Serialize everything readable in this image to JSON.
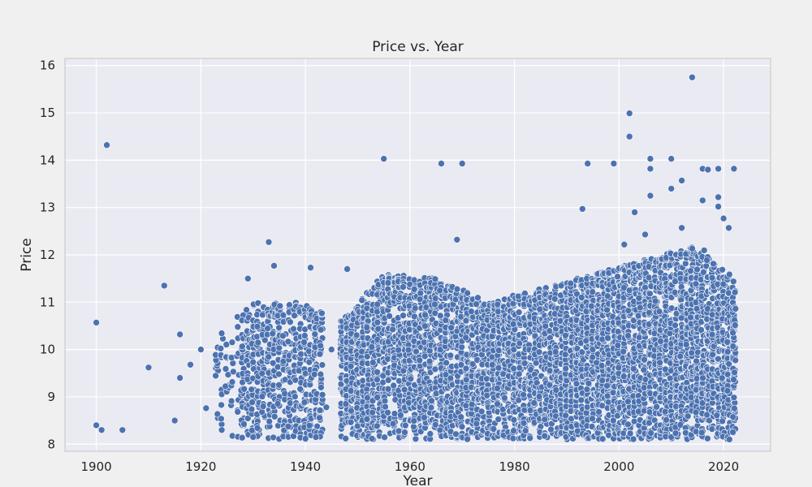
{
  "chart_data": {
    "type": "scatter",
    "title": "Price vs. Year",
    "xlabel": "Year",
    "ylabel": "Price",
    "xlim": [
      1894,
      2029
    ],
    "ylim": [
      7.85,
      16.15
    ],
    "xticks": [
      1900,
      1920,
      1940,
      1960,
      1980,
      2000,
      2020
    ],
    "yticks": [
      8,
      9,
      10,
      11,
      12,
      13,
      14,
      15,
      16
    ],
    "grid": true,
    "point_color": "#4c72b0",
    "point_edge_color": "#ffffff",
    "background_color": "#eaeaf2",
    "outliers": [
      {
        "x": 1900,
        "y": 10.57
      },
      {
        "x": 1900,
        "y": 8.4
      },
      {
        "x": 1901,
        "y": 8.3
      },
      {
        "x": 1902,
        "y": 14.32
      },
      {
        "x": 1905,
        "y": 8.3
      },
      {
        "x": 1910,
        "y": 9.62
      },
      {
        "x": 1913,
        "y": 11.35
      },
      {
        "x": 1915,
        "y": 8.5
      },
      {
        "x": 1916,
        "y": 9.4
      },
      {
        "x": 1916,
        "y": 10.32
      },
      {
        "x": 1918,
        "y": 9.68
      },
      {
        "x": 1920,
        "y": 10.0
      },
      {
        "x": 1921,
        "y": 8.76
      },
      {
        "x": 1929,
        "y": 11.5
      },
      {
        "x": 1933,
        "y": 12.27
      },
      {
        "x": 1934,
        "y": 11.77
      },
      {
        "x": 1941,
        "y": 11.73
      },
      {
        "x": 1945,
        "y": 10.0
      },
      {
        "x": 1948,
        "y": 11.7
      },
      {
        "x": 1955,
        "y": 14.03
      },
      {
        "x": 1966,
        "y": 13.93
      },
      {
        "x": 1970,
        "y": 13.93
      },
      {
        "x": 1969,
        "y": 12.32
      },
      {
        "x": 1993,
        "y": 12.97
      },
      {
        "x": 1994,
        "y": 13.93
      },
      {
        "x": 1999,
        "y": 13.93
      },
      {
        "x": 2001,
        "y": 12.22
      },
      {
        "x": 2002,
        "y": 14.99
      },
      {
        "x": 2002,
        "y": 14.5
      },
      {
        "x": 2003,
        "y": 12.9
      },
      {
        "x": 2005,
        "y": 12.43
      },
      {
        "x": 2006,
        "y": 14.03
      },
      {
        "x": 2006,
        "y": 13.82
      },
      {
        "x": 2006,
        "y": 13.25
      },
      {
        "x": 2010,
        "y": 14.03
      },
      {
        "x": 2010,
        "y": 13.4
      },
      {
        "x": 2012,
        "y": 13.57
      },
      {
        "x": 2012,
        "y": 12.57
      },
      {
        "x": 2014,
        "y": 15.75
      },
      {
        "x": 2016,
        "y": 13.82
      },
      {
        "x": 2016,
        "y": 13.15
      },
      {
        "x": 2017,
        "y": 13.8
      },
      {
        "x": 2019,
        "y": 13.82
      },
      {
        "x": 2019,
        "y": 13.22
      },
      {
        "x": 2019,
        "y": 13.02
      },
      {
        "x": 2020,
        "y": 12.77
      },
      {
        "x": 2021,
        "y": 12.57
      },
      {
        "x": 2022,
        "y": 13.82
      },
      {
        "x": 1942,
        "y": 8.15
      },
      {
        "x": 1930,
        "y": 8.15
      },
      {
        "x": 1924,
        "y": 8.3
      },
      {
        "x": 1943,
        "y": 9.2
      },
      {
        "x": 1944,
        "y": 8.78
      }
    ],
    "dense_region": {
      "x_start": 1923,
      "x_end": 2022,
      "gap_years": [
        1944,
        1945,
        1946
      ],
      "y_min": 8.1,
      "y_max_by_decade": [
        {
          "x": 1923,
          "y": 10.3
        },
        {
          "x": 1930,
          "y": 11.0
        },
        {
          "x": 1940,
          "y": 11.0
        },
        {
          "x": 1947,
          "y": 10.6
        },
        {
          "x": 1955,
          "y": 11.6
        },
        {
          "x": 1965,
          "y": 11.5
        },
        {
          "x": 1975,
          "y": 11.0
        },
        {
          "x": 1985,
          "y": 11.3
        },
        {
          "x": 1995,
          "y": 11.6
        },
        {
          "x": 2005,
          "y": 11.9
        },
        {
          "x": 2015,
          "y": 12.2
        },
        {
          "x": 2022,
          "y": 11.5
        }
      ]
    }
  }
}
